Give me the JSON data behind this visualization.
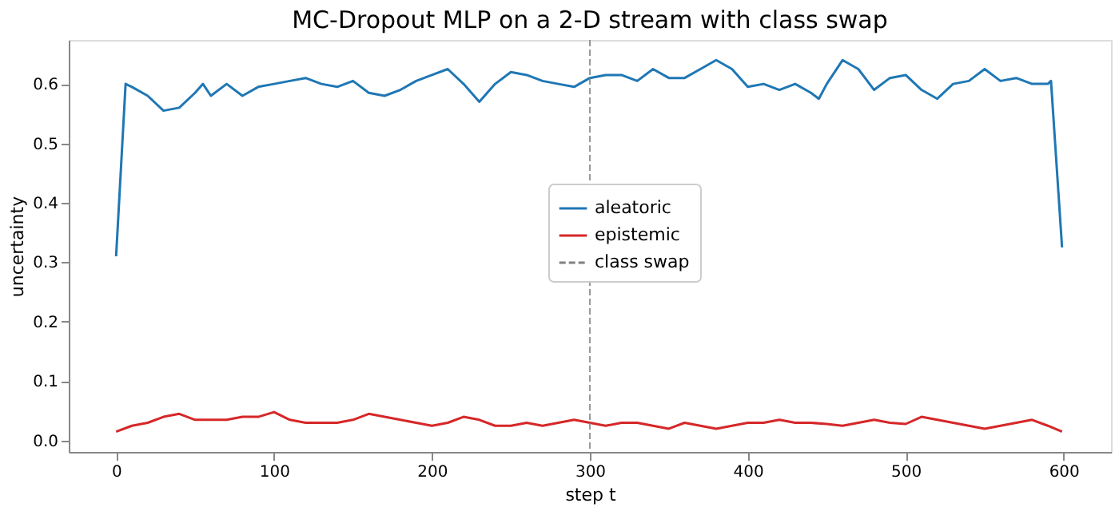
{
  "chart_data": {
    "type": "line",
    "title": "MC-Dropout MLP on a 2-D stream with class swap",
    "xlabel": "step t",
    "ylabel": "uncertainty",
    "xlim": [
      -30,
      630
    ],
    "ylim": [
      -0.019,
      0.674
    ],
    "xticks": [
      0,
      100,
      200,
      300,
      400,
      500,
      600
    ],
    "yticks": [
      {
        "value": 0,
        "label": "0.0"
      },
      0.1,
      0.2,
      0.3,
      0.4,
      0.5,
      0.6
    ],
    "legend": "center",
    "grid": false,
    "line_style": "solid",
    "marker": "none",
    "series": [
      {
        "name": "aleatoric",
        "color": "#1f77b4",
        "x": [
          0,
          6,
          10,
          20,
          30,
          40,
          50,
          55,
          60,
          70,
          80,
          90,
          100,
          110,
          120,
          130,
          140,
          150,
          160,
          170,
          180,
          190,
          200,
          210,
          220,
          230,
          240,
          250,
          260,
          270,
          280,
          290,
          300,
          310,
          320,
          330,
          340,
          350,
          360,
          370,
          380,
          390,
          400,
          410,
          420,
          430,
          440,
          445,
          450,
          460,
          470,
          480,
          490,
          500,
          510,
          520,
          530,
          540,
          550,
          560,
          570,
          580,
          590,
          592,
          599
        ],
        "values": [
          0.31,
          0.6,
          0.595,
          0.58,
          0.555,
          0.56,
          0.585,
          0.6,
          0.58,
          0.6,
          0.58,
          0.595,
          0.6,
          0.605,
          0.61,
          0.6,
          0.595,
          0.605,
          0.585,
          0.58,
          0.59,
          0.605,
          0.615,
          0.625,
          0.6,
          0.57,
          0.6,
          0.62,
          0.615,
          0.605,
          0.6,
          0.595,
          0.61,
          0.615,
          0.615,
          0.605,
          0.625,
          0.61,
          0.61,
          0.625,
          0.64,
          0.625,
          0.595,
          0.6,
          0.59,
          0.6,
          0.585,
          0.575,
          0.6,
          0.64,
          0.625,
          0.59,
          0.61,
          0.615,
          0.59,
          0.575,
          0.6,
          0.605,
          0.625,
          0.605,
          0.61,
          0.6,
          0.6,
          0.605,
          0.325
        ]
      },
      {
        "name": "epistemic",
        "color": "#d62728",
        "x": [
          0,
          10,
          20,
          30,
          40,
          50,
          60,
          70,
          80,
          90,
          100,
          110,
          120,
          140,
          150,
          160,
          170,
          180,
          190,
          200,
          210,
          220,
          230,
          240,
          250,
          260,
          270,
          280,
          290,
          300,
          310,
          320,
          330,
          340,
          350,
          360,
          370,
          380,
          390,
          400,
          410,
          420,
          430,
          440,
          450,
          460,
          470,
          480,
          490,
          500,
          510,
          520,
          530,
          540,
          550,
          560,
          570,
          580,
          590,
          599
        ],
        "values": [
          0.015,
          0.025,
          0.03,
          0.04,
          0.045,
          0.035,
          0.035,
          0.035,
          0.04,
          0.04,
          0.048,
          0.035,
          0.03,
          0.03,
          0.035,
          0.045,
          0.04,
          0.035,
          0.03,
          0.025,
          0.03,
          0.04,
          0.035,
          0.025,
          0.025,
          0.03,
          0.025,
          0.03,
          0.035,
          0.03,
          0.025,
          0.03,
          0.03,
          0.025,
          0.02,
          0.03,
          0.025,
          0.02,
          0.025,
          0.03,
          0.03,
          0.035,
          0.03,
          0.03,
          0.028,
          0.025,
          0.03,
          0.035,
          0.03,
          0.028,
          0.04,
          0.035,
          0.03,
          0.025,
          0.02,
          0.025,
          0.03,
          0.035,
          0.025,
          0.015
        ]
      }
    ],
    "ref_lines": [
      {
        "axis": "x",
        "value": 300,
        "label": "class swap",
        "color": "#808080",
        "line_style": "dashed"
      }
    ]
  }
}
